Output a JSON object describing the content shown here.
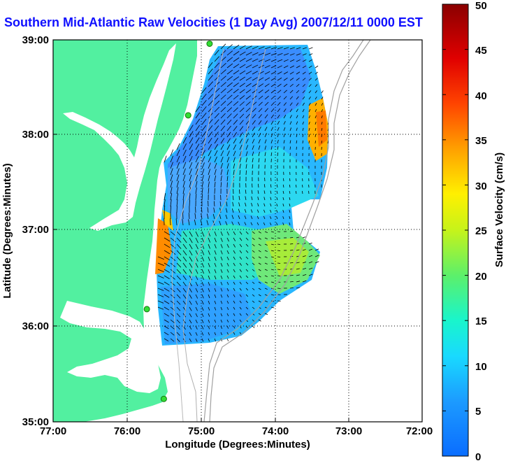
{
  "title": "Southern Mid-Atlantic Raw Velocities (1 Day Avg) 2007/12/11 0000 EST",
  "map": {
    "x_label": "Longitude (Degrees:Minutes)",
    "y_label": "Latitude (Degrees:Minutes)",
    "lon_range": [
      -77,
      -72
    ],
    "lat_range": [
      35,
      39
    ],
    "lon_ticks": [
      "77:00",
      "76:00",
      "75:00",
      "74:00",
      "73:00",
      "72:00"
    ],
    "lat_ticks": [
      "39:00",
      "38:00",
      "37:00",
      "36:00",
      "35:00"
    ],
    "land_color": "#52f0a0",
    "grid": "dotted"
  },
  "colorbar": {
    "label": "Surface Velocity (cm/s)",
    "min": 0,
    "max": 50,
    "ticks": [
      "50",
      "45",
      "40",
      "35",
      "30",
      "25",
      "20",
      "15",
      "10",
      "5",
      "0"
    ]
  },
  "stations": [
    {
      "lon": -74.88,
      "lat": 38.96
    },
    {
      "lon": -75.17,
      "lat": 38.21
    },
    {
      "lon": -75.73,
      "lat": 36.18
    },
    {
      "lon": -75.5,
      "lat": 35.24
    }
  ]
}
